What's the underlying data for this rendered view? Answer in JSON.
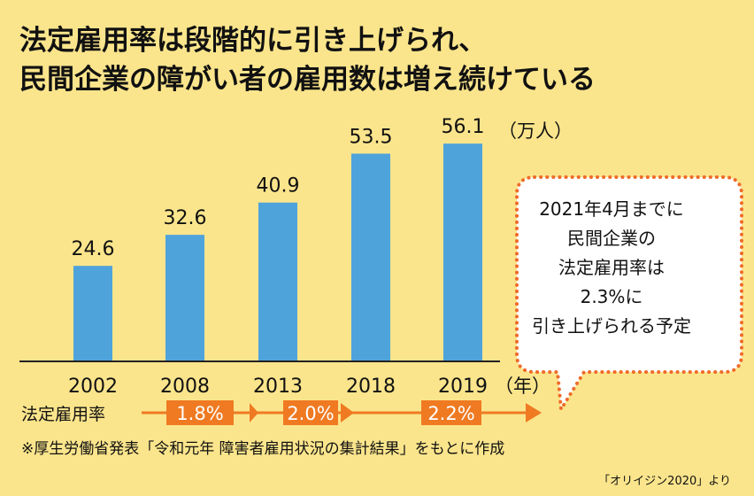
{
  "title": {
    "line1": "法定雇用率は段階的に引き上げられ、",
    "line2": "民間企業の障がい者の雇用数は増え続けている"
  },
  "chart_data": {
    "type": "bar",
    "categories": [
      "2002",
      "2008",
      "2013",
      "2018",
      "2019"
    ],
    "values": [
      24.6,
      32.6,
      40.9,
      53.5,
      56.1
    ],
    "value_labels": [
      "24.6",
      "32.6",
      "40.9",
      "53.5",
      "56.1"
    ],
    "unit_label": "（万人）",
    "x_unit_label": "（年）",
    "ylim": [
      0,
      60
    ],
    "bar_color": "#4fa3db",
    "rates": {
      "label": "法定雇用率",
      "values": [
        "1.8%",
        "2.0%",
        "2.2%"
      ],
      "color": "#ef7a22"
    }
  },
  "bubble": {
    "lines": [
      "2021年4月までに",
      "民間企業の",
      "法定雇用率は",
      "2.3%に",
      "引き上げられる予定"
    ],
    "border_color": "#ef6a2a"
  },
  "source": "※厚生労働省発表「令和元年 障害者雇用状況の集計結果」をもとに作成",
  "credit": "「オリイジン2020」より"
}
